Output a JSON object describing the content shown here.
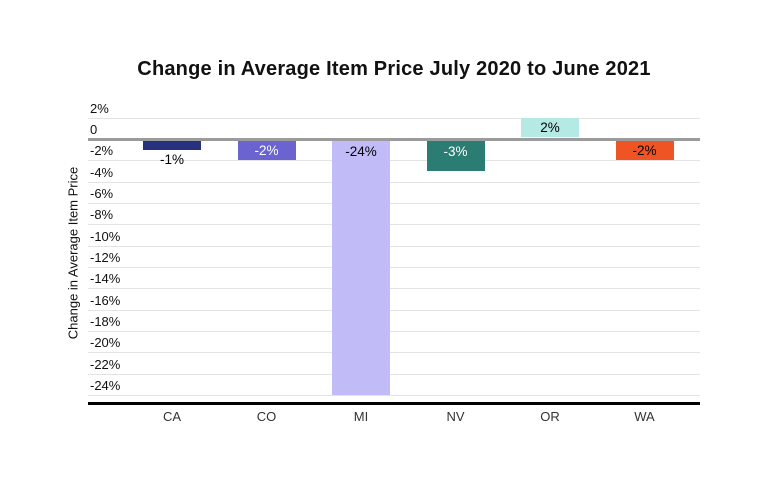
{
  "title": "Change in Average Item Price July 2020 to June 2021",
  "chart_data": {
    "type": "bar",
    "title": "Change in Average Item Price July 2020 to June 2021",
    "xlabel": "",
    "ylabel": "Change in Average Item Price",
    "categories": [
      "CA",
      "CO",
      "MI",
      "NV",
      "OR",
      "WA"
    ],
    "values": [
      -1,
      -2,
      -24,
      -3,
      2,
      -2
    ],
    "bar_labels": [
      "-1%",
      "-2%",
      "-24%",
      "-3%",
      "2%",
      "-2%"
    ],
    "bar_colors": [
      "#27317e",
      "#6b63d0",
      "#c1bcf8",
      "#2b7c72",
      "#b4e9e4",
      "#ef5424"
    ],
    "bar_label_colors": [
      "#000000",
      "#ffffff",
      "#000000",
      "#ffffff",
      "#000000",
      "#000000"
    ],
    "bar_label_placement": [
      "below",
      "inside",
      "inside",
      "inside",
      "inside",
      "inside"
    ],
    "y_ticks": [
      {
        "label": "2%",
        "value": 2
      },
      {
        "label": "0",
        "value": 0
      },
      {
        "label": "-2%",
        "value": -2
      },
      {
        "label": "-4%",
        "value": -4
      },
      {
        "label": "-6%",
        "value": -6
      },
      {
        "label": "-8%",
        "value": -8
      },
      {
        "label": "-10%",
        "value": -10
      },
      {
        "label": "-12%",
        "value": -12
      },
      {
        "label": "-14%",
        "value": -14
      },
      {
        "label": "-16%",
        "value": -16
      },
      {
        "label": "-18%",
        "value": -18
      },
      {
        "label": "-20%",
        "value": -20
      },
      {
        "label": "-22%",
        "value": -22
      },
      {
        "label": "-24%",
        "value": -24
      }
    ],
    "ylim": [
      -24,
      2
    ],
    "grid": true,
    "legend": "none",
    "gridline_color": "#e3e3e3",
    "zero_line_color": "#9b9b9b",
    "axis_line_color": "#000000",
    "background_color": "#ffffff"
  }
}
